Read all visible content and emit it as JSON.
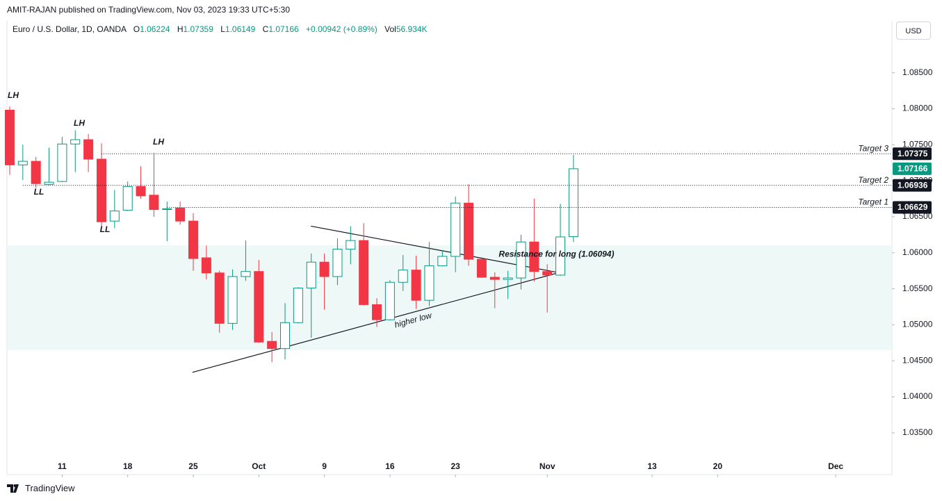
{
  "chart_data": {
    "type": "candlestick",
    "header": "AMIT-RAJAN published on TradingView.com, Nov 03, 2023 19:33 UTC+5:30",
    "legend": {
      "symbol": "Euro / U.S. Dollar, 1D, OANDA",
      "open_label": "O",
      "open": "1.06224",
      "high_label": "H",
      "high": "1.07359",
      "low_label": "L",
      "low": "1.06149",
      "close_label": "C",
      "close": "1.07166",
      "change": "+0.00942 (+0.89%)",
      "volume_label": "Vol",
      "volume": "56.934K"
    },
    "currency": "USD",
    "brand": "TradingView",
    "up_color": "#089981",
    "down_color": "#f23645",
    "open": [
      1.0798,
      1.0722,
      1.0727,
      1.0695,
      1.0699,
      1.0751,
      1.0757,
      1.073,
      1.0644,
      1.0659,
      1.0692,
      1.068,
      1.066,
      1.0662,
      1.0644,
      1.0593,
      1.0572,
      1.0502,
      1.0567,
      1.0574,
      1.0477,
      1.0467,
      1.0503,
      1.0551,
      1.0587,
      1.0567,
      1.0605,
      1.0617,
      1.0528,
      1.0507,
      1.0559,
      1.0576,
      1.0534,
      1.0582,
      1.0595,
      1.0669,
      1.0591,
      1.0566,
      1.0563,
      1.0565,
      1.0615,
      1.0574,
      1.0569,
      1.06224
    ],
    "high": [
      1.0803,
      1.075,
      1.0733,
      1.0746,
      1.0761,
      1.077,
      1.0765,
      1.0752,
      1.0687,
      1.0699,
      1.072,
      1.0739,
      1.0671,
      1.0671,
      1.0655,
      1.061,
      1.0575,
      1.0577,
      1.0617,
      1.059,
      1.049,
      1.053,
      1.0552,
      1.0599,
      1.0599,
      1.062,
      1.0637,
      1.0641,
      1.0537,
      1.0562,
      1.0597,
      1.0596,
      1.0615,
      1.0603,
      1.0678,
      1.0695,
      1.0591,
      1.0573,
      1.0575,
      1.0625,
      1.0675,
      1.0584,
      1.0668,
      1.07359
    ],
    "low": [
      1.0708,
      1.0701,
      1.069,
      1.0694,
      1.0698,
      1.0712,
      1.0712,
      1.0632,
      1.0634,
      1.0658,
      1.0675,
      1.065,
      1.0616,
      1.0639,
      1.0575,
      1.0563,
      1.0489,
      1.0493,
      1.0561,
      1.0475,
      1.0448,
      1.0452,
      1.0502,
      1.0482,
      1.0521,
      1.0555,
      1.0584,
      1.0527,
      1.0497,
      1.0506,
      1.0547,
      1.0522,
      1.0526,
      1.0581,
      1.0573,
      1.0582,
      1.0565,
      1.0523,
      1.0536,
      1.0549,
      1.056,
      1.0517,
      1.0568,
      1.06149
    ],
    "close": [
      1.0722,
      1.0727,
      1.0696,
      1.0698,
      1.0751,
      1.0757,
      1.073,
      1.0643,
      1.0658,
      1.0692,
      1.0679,
      1.066,
      1.0661,
      1.0644,
      1.0592,
      1.0572,
      1.0502,
      1.0567,
      1.0574,
      1.0476,
      1.0467,
      1.0503,
      1.0551,
      1.0587,
      1.0567,
      1.0605,
      1.0617,
      1.0528,
      1.0507,
      1.0559,
      1.0576,
      1.0534,
      1.0582,
      1.0595,
      1.0669,
      1.0591,
      1.0566,
      1.0563,
      1.0565,
      1.0615,
      1.0574,
      1.0569,
      1.0622,
      1.07166
    ],
    "xlim": [
      -0.21,
      67.29
    ],
    "xticks": [
      {
        "value": 4,
        "label": "11"
      },
      {
        "value": 9,
        "label": "18"
      },
      {
        "value": 14,
        "label": "25"
      },
      {
        "value": 19,
        "label": "Oct"
      },
      {
        "value": 24,
        "label": "9"
      },
      {
        "value": 29,
        "label": "16"
      },
      {
        "value": 34,
        "label": "23"
      },
      {
        "value": 41,
        "label": "Nov"
      },
      {
        "value": 49,
        "label": "13"
      },
      {
        "value": 54,
        "label": "20"
      },
      {
        "value": 63,
        "label": "Dec"
      }
    ],
    "ylim": [
      1.0292,
      1.0922
    ],
    "yticks": [
      {
        "value": 1.035,
        "label": "1.03500"
      },
      {
        "value": 1.04,
        "label": "1.04000"
      },
      {
        "value": 1.045,
        "label": "1.04500"
      },
      {
        "value": 1.05,
        "label": "1.05000"
      },
      {
        "value": 1.055,
        "label": "1.05500"
      },
      {
        "value": 1.06,
        "label": "1.06000"
      },
      {
        "value": 1.065,
        "label": "1.06500"
      },
      {
        "value": 1.07,
        "label": "1.07000"
      },
      {
        "value": 1.075,
        "label": "1.07500"
      },
      {
        "value": 1.08,
        "label": "1.08000"
      },
      {
        "value": 1.085,
        "label": "1.08500"
      }
    ],
    "last_price": {
      "value": 1.07166,
      "label": "1.07166"
    },
    "targets": [
      {
        "name": "Target 3",
        "value": 1.07375,
        "label": "1.07375"
      },
      {
        "name": "Target 2",
        "value": 1.06936,
        "label": "1.06936"
      },
      {
        "name": "Target 1",
        "value": 1.06629,
        "label": "1.06629"
      }
    ],
    "zone": [
      1.0465,
      1.061
    ],
    "zone_label": "Resistance for long (1.06094)",
    "trendlines": [
      {
        "name": "higher low",
        "x": [
          13.94,
          42.0
        ],
        "y": [
          1.0434,
          1.0573
        ]
      },
      {
        "x": [
          22.97,
          42.0
        ],
        "y": [
          1.0637,
          1.0572
        ]
      }
    ],
    "annotations": [
      "LH",
      "LH",
      "LH",
      "LL",
      "LL"
    ]
  }
}
